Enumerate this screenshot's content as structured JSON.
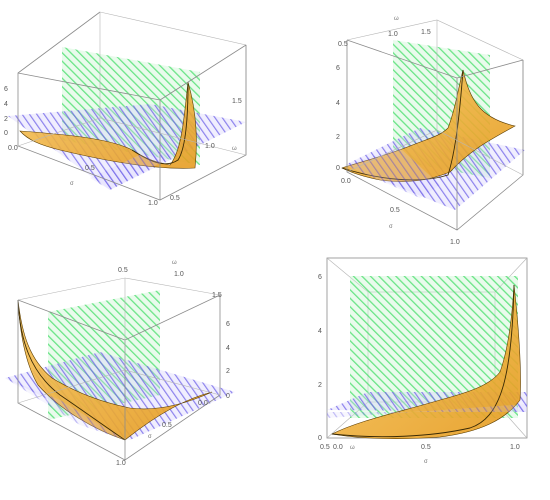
{
  "chart_data": [
    {
      "type": "surface3d",
      "view": "top-left",
      "xlabel": "σ",
      "ylabel": "ω",
      "zlabel": "",
      "xticks": [
        "0.0",
        "0.5",
        "1.0"
      ],
      "yticks": [
        "0.5",
        "1.0",
        "1.5"
      ],
      "zticks": [
        "0",
        "2",
        "4",
        "6"
      ],
      "xlim": [
        0,
        1
      ],
      "ylim": [
        0.5,
        1.5
      ],
      "zlim": [
        0,
        6
      ],
      "surface_height_along_sigma": [
        0.1,
        0.3,
        0.7,
        1.5,
        6.0
      ],
      "planes": [
        {
          "name": "vertical",
          "color": "#34d058"
        },
        {
          "name": "horizontal",
          "color": "#5b4fe0"
        }
      ],
      "surface_color": "#f0ad2c"
    },
    {
      "type": "surface3d",
      "view": "top-right",
      "xlabel": "σ",
      "ylabel": "ω",
      "zlabel": "",
      "xticks": [
        "0.0",
        "0.5",
        "1.0"
      ],
      "yticks": [
        "0.5",
        "1.0",
        "1.5"
      ],
      "zticks": [
        "0",
        "2",
        "4",
        "6"
      ],
      "xlim": [
        0,
        1
      ],
      "ylim": [
        0.5,
        1.5
      ],
      "zlim": [
        0,
        6
      ],
      "surface_height_along_sigma": [
        0.1,
        0.3,
        0.7,
        1.5,
        6.0
      ],
      "planes": [
        {
          "name": "vertical",
          "color": "#34d058"
        },
        {
          "name": "horizontal",
          "color": "#5b4fe0"
        }
      ],
      "surface_color": "#f0ad2c"
    },
    {
      "type": "surface3d",
      "view": "bottom-left",
      "xlabel": "σ",
      "ylabel": "ω",
      "zlabel": "",
      "xticks": [
        "0.0",
        "0.5",
        "1.0"
      ],
      "yticks": [
        "0.5",
        "1.0",
        "1.5"
      ],
      "zticks": [
        "0",
        "2",
        "4",
        "6"
      ],
      "xlim": [
        0,
        1
      ],
      "ylim": [
        0.5,
        1.5
      ],
      "zlim": [
        0,
        6
      ],
      "surface_height_along_sigma": [
        0.1,
        0.3,
        0.7,
        1.5,
        6.0
      ],
      "planes": [
        {
          "name": "vertical",
          "color": "#34d058"
        },
        {
          "name": "horizontal",
          "color": "#5b4fe0"
        }
      ],
      "surface_color": "#f0ad2c"
    },
    {
      "type": "surface3d",
      "view": "bottom-right",
      "xlabel": "σ",
      "ylabel": "ω",
      "zlabel": "",
      "xticks": [
        "0.0",
        "0.5",
        "1.0"
      ],
      "yticks": [
        "0.5"
      ],
      "zticks": [
        "0",
        "2",
        "4",
        "6"
      ],
      "xlim": [
        0,
        1
      ],
      "ylim": [
        0.5,
        1.5
      ],
      "zlim": [
        0,
        6
      ],
      "surface_height_along_sigma": [
        0.1,
        0.3,
        0.7,
        1.5,
        6.0
      ],
      "planes": [
        {
          "name": "vertical",
          "color": "#34d058"
        },
        {
          "name": "horizontal",
          "color": "#5b4fe0"
        }
      ],
      "surface_color": "#f0ad2c"
    }
  ]
}
